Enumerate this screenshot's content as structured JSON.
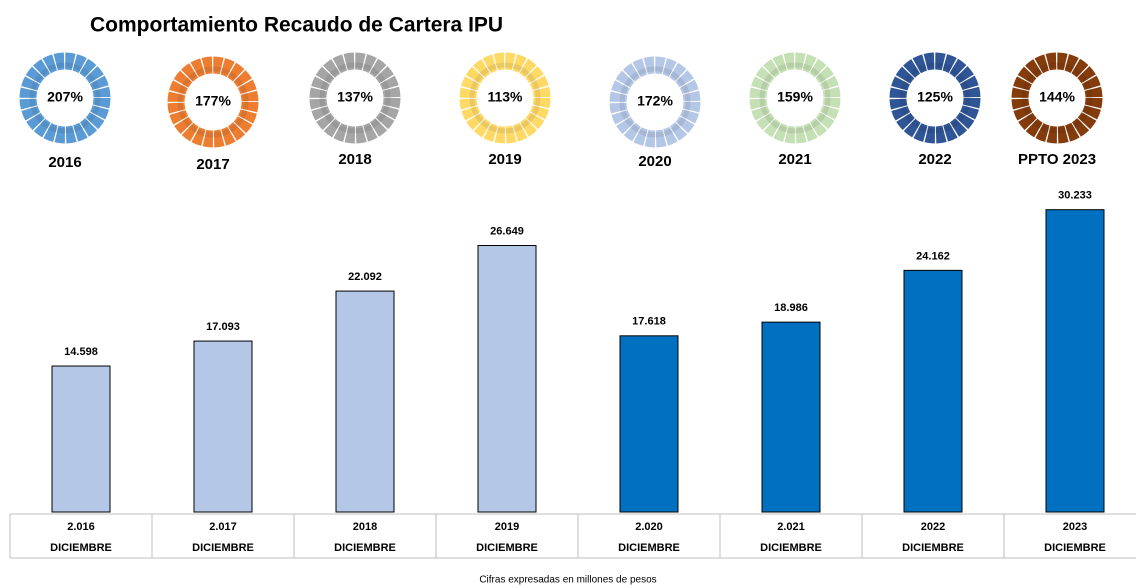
{
  "chart_data": {
    "type": "bar",
    "title": "Comportamiento Recaudo de Cartera IPU",
    "footnote": "Cifras expresadas en millones de pesos",
    "donuts": [
      {
        "label": "2016",
        "value": 207,
        "value_label": "207%",
        "color": "#5b9bd5"
      },
      {
        "label": "2017",
        "value": 177,
        "value_label": "177%",
        "color": "#ed7d31"
      },
      {
        "label": "2018",
        "value": 137,
        "value_label": "137%",
        "color": "#a5a5a5"
      },
      {
        "label": "2019",
        "value": 113,
        "value_label": "113%",
        "color": "#ffd966"
      },
      {
        "label": "2020",
        "value": 172,
        "value_label": "172%",
        "color": "#b4c7e7"
      },
      {
        "label": "2021",
        "value": 159,
        "value_label": "159%",
        "color": "#c5e0b4"
      },
      {
        "label": "2022",
        "value": 125,
        "value_label": "125%",
        "color": "#2f5597"
      },
      {
        "label": "PPTO 2023",
        "value": 144,
        "value_label": "144%",
        "color": "#843c0c"
      }
    ],
    "categories": [
      "2.016",
      "2.017",
      "2018",
      "2019",
      "2.020",
      "2.021",
      "2022",
      "2023"
    ],
    "sublabels": [
      "DICIEMBRE",
      "DICIEMBRE",
      "DICIEMBRE",
      "DICIEMBRE",
      "DICIEMBRE",
      "DICIEMBRE",
      "DICIEMBRE",
      "DICIEMBRE"
    ],
    "values": [
      14598,
      17093,
      22092,
      26649,
      17618,
      18986,
      24162,
      30233
    ],
    "value_labels": [
      "14.598",
      "17.093",
      "22.092",
      "26.649",
      "17.618",
      "18.986",
      "24.162",
      "30.233"
    ],
    "colors": [
      "#b4c7e7",
      "#b4c7e7",
      "#b4c7e7",
      "#b4c7e7",
      "#0070c0",
      "#0070c0",
      "#0070c0",
      "#0070c0"
    ],
    "ylim": [
      0,
      32000
    ]
  }
}
